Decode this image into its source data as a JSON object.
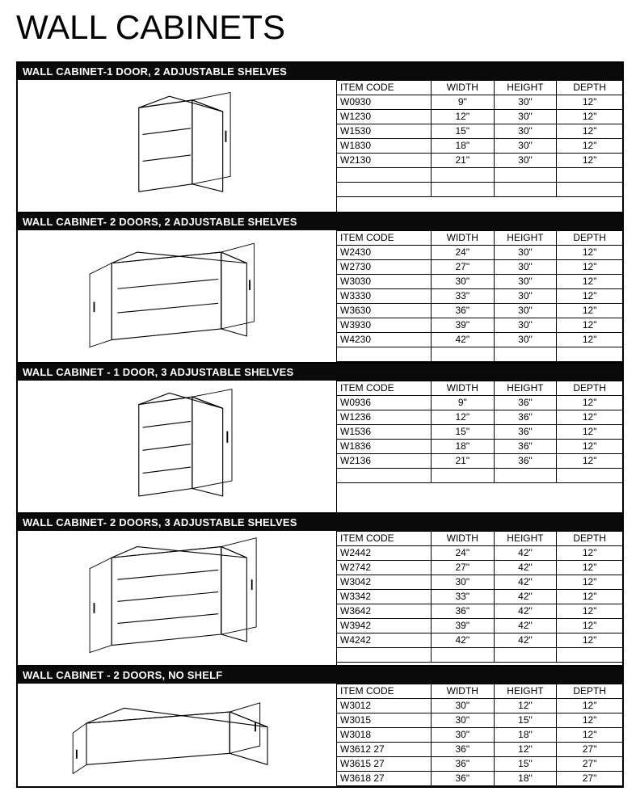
{
  "page": {
    "title": "WALL CABINETS",
    "background_color": "#ffffff",
    "header_bg": "#0a0a0a",
    "header_text_color": "#ffffff",
    "border_color": "#000000",
    "title_fontsize_pt": 32,
    "label_fontsize_pt": 10,
    "cell_fontsize_pt": 9
  },
  "column_headers": {
    "code": "ITEM CODE",
    "width": "WIDTH",
    "height": "HEIGHT",
    "depth": "DEPTH"
  },
  "sections": [
    {
      "title": "WALL CABINET-1 DOOR, 2 ADJUSTABLE SHELVES",
      "bold_header": false,
      "trailing_blank_rows": 2,
      "illustration": "single-door-2shelf",
      "rows": [
        {
          "code": "W0930",
          "width": "9\"",
          "height": "30\"",
          "depth": "12\""
        },
        {
          "code": "W1230",
          "width": "12\"",
          "height": "30\"",
          "depth": "12\""
        },
        {
          "code": "W1530",
          "width": "15\"",
          "height": "30\"",
          "depth": "12\""
        },
        {
          "code": "W1830",
          "width": "18\"",
          "height": "30\"",
          "depth": "12\""
        },
        {
          "code": "W2130",
          "width": "21\"",
          "height": "30\"",
          "depth": "12\""
        }
      ]
    },
    {
      "title": "WALL CABINET- 2 DOORS, 2 ADJUSTABLE SHELVES",
      "bold_header": false,
      "trailing_blank_rows": 1,
      "illustration": "double-door-2shelf",
      "rows": [
        {
          "code": "W2430",
          "width": "24\"",
          "height": "30\"",
          "depth": "12\""
        },
        {
          "code": "W2730",
          "width": "27\"",
          "height": "30\"",
          "depth": "12\""
        },
        {
          "code": "W3030",
          "width": "30\"",
          "height": "30\"",
          "depth": "12\""
        },
        {
          "code": "W3330",
          "width": "33\"",
          "height": "30\"",
          "depth": "12\""
        },
        {
          "code": "W3630",
          "width": "36\"",
          "height": "30\"",
          "depth": "12\""
        },
        {
          "code": "W3930",
          "width": "39\"",
          "height": "30\"",
          "depth": "12\""
        },
        {
          "code": "W4230",
          "width": "42\"",
          "height": "30\"",
          "depth": "12\""
        }
      ]
    },
    {
      "title": "WALL CABINET - 1 DOOR, 3 ADJUSTABLE SHELVES",
      "bold_header": false,
      "trailing_blank_rows": 1,
      "illustration": "single-door-3shelf",
      "rows": [
        {
          "code": "W0936",
          "width": "9\"",
          "height": "36\"",
          "depth": "12\""
        },
        {
          "code": "W1236",
          "width": "12\"",
          "height": "36\"",
          "depth": "12\""
        },
        {
          "code": "W1536",
          "width": "15\"",
          "height": "36\"",
          "depth": "12\""
        },
        {
          "code": "W1836",
          "width": "18\"",
          "height": "36\"",
          "depth": "12\""
        },
        {
          "code": "W2136",
          "width": "21\"",
          "height": "36\"",
          "depth": "12\""
        }
      ]
    },
    {
      "title": "WALL CABINET- 2 DOORS, 3 ADJUSTABLE SHELVES",
      "bold_header": true,
      "trailing_blank_rows": 1,
      "illustration": "double-door-3shelf",
      "rows": [
        {
          "code": "W2442",
          "width": "24\"",
          "height": "42\"",
          "depth": "12\""
        },
        {
          "code": "W2742",
          "width": "27\"",
          "height": "42\"",
          "depth": "12\""
        },
        {
          "code": "W3042",
          "width": "30\"",
          "height": "42\"",
          "depth": "12\""
        },
        {
          "code": "W3342",
          "width": "33\"",
          "height": "42\"",
          "depth": "12\""
        },
        {
          "code": "W3642",
          "width": "36\"",
          "height": "42\"",
          "depth": "12\""
        },
        {
          "code": "W3942",
          "width": "39\"",
          "height": "42\"",
          "depth": "12\""
        },
        {
          "code": "W4242",
          "width": "42\"",
          "height": "42\"",
          "depth": "12\""
        }
      ]
    },
    {
      "title": "WALL CABINET - 2 DOORS, NO SHELF",
      "bold_header": true,
      "trailing_blank_rows": 0,
      "illustration": "double-door-noshelf",
      "rows": [
        {
          "code": "W3012",
          "width": "30\"",
          "height": "12\"",
          "depth": "12\""
        },
        {
          "code": "W3015",
          "width": "30\"",
          "height": "15\"",
          "depth": "12\""
        },
        {
          "code": "W3018",
          "width": "30\"",
          "height": "18\"",
          "depth": "12\""
        },
        {
          "code": "W3612 27",
          "width": "36\"",
          "height": "12\"",
          "depth": "27\""
        },
        {
          "code": "W3615 27",
          "width": "36\"",
          "height": "15\"",
          "depth": "27\""
        },
        {
          "code": "W3618 27",
          "width": "36\"",
          "height": "18\"",
          "depth": "27\""
        }
      ]
    }
  ]
}
